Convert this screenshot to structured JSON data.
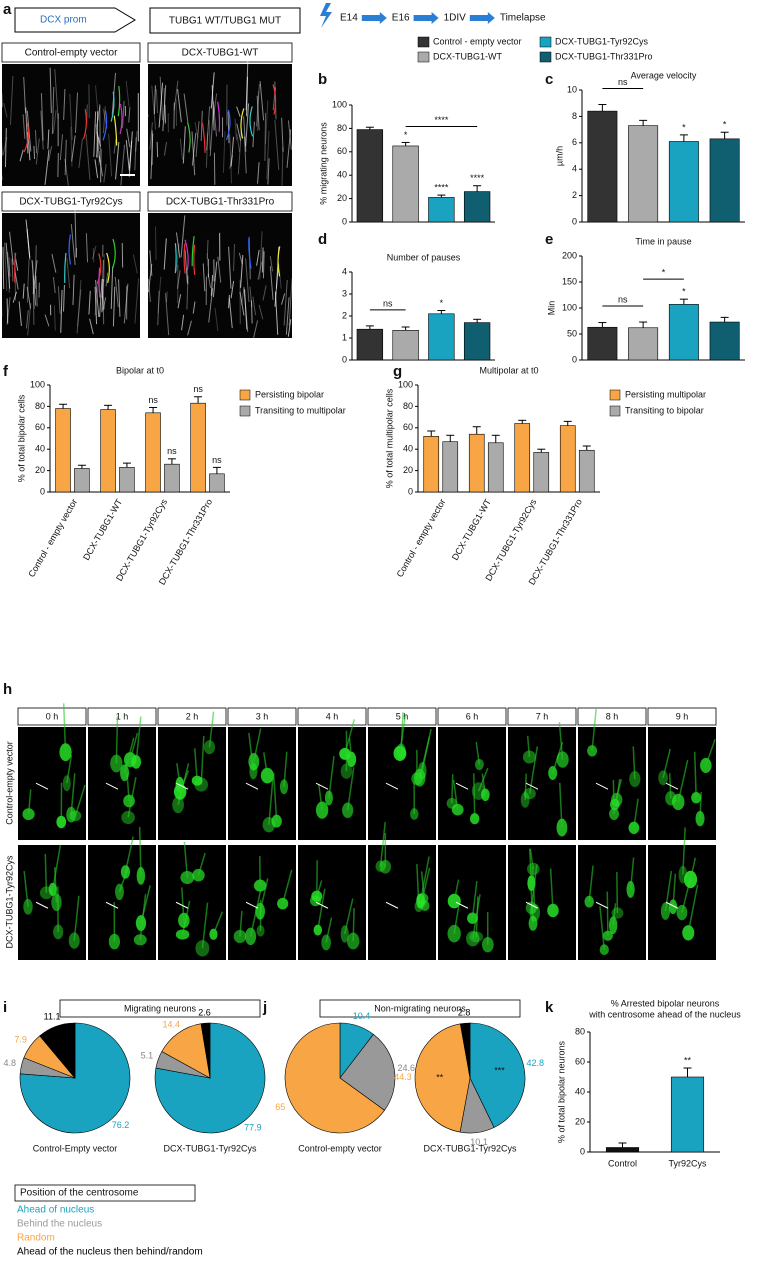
{
  "panel_labels": [
    "a",
    "b",
    "c",
    "d",
    "e",
    "f",
    "g",
    "h",
    "i",
    "j",
    "k"
  ],
  "schematic": {
    "promoter": "DCX prom",
    "construct": "TUBG1 WT/TUBG1 MUT"
  },
  "timeline": [
    "E14",
    "E16",
    "1DIV",
    "Timelapse"
  ],
  "groups": {
    "names": [
      "Control - empty vector",
      "DCX-TUBG1-WT",
      "DCX-TUBG1-Tyr92Cys",
      "DCX-TUBG1-Thr331Pro"
    ],
    "colors": [
      "#333333",
      "#aaaaaa",
      "#19a3c0",
      "#0f5f70"
    ]
  },
  "images_a": [
    "Control-empty vector",
    "DCX-TUBG1-WT",
    "DCX-TUBG1-Tyr92Cys",
    "DCX-TUBG1-Thr331Pro"
  ],
  "timelapse": {
    "times": [
      "0 h",
      "1 h",
      "2 h",
      "3 h",
      "4 h",
      "5 h",
      "6 h",
      "7 h",
      "8 h",
      "9 h"
    ],
    "rows": [
      "Control-empty vector",
      "DCX-TUBG1-Tyr92Cys"
    ]
  },
  "centrosome_legend": {
    "title": "Position of the centrosome",
    "categories": [
      "Ahead of nucleus",
      "Behind the nucleus",
      "Random",
      "Ahead of the nucleus then behind/random"
    ],
    "colors": [
      "#19a3c0",
      "#999999",
      "#f7a545",
      "#000000"
    ]
  },
  "chart_data": [
    {
      "type": "bar",
      "ylabel": "% migrating neurons",
      "values": [
        79,
        65,
        21,
        26
      ],
      "errors": [
        2,
        3,
        2,
        5
      ],
      "sig": [
        null,
        "*",
        "****",
        "****"
      ],
      "brackets": [
        {
          "text": "****",
          "from": 1,
          "to": 3
        }
      ],
      "ylim": [
        0,
        100
      ],
      "yticks": [
        0,
        20,
        40,
        60,
        80,
        100
      ]
    },
    {
      "type": "bar",
      "title": "Average velocity",
      "ylabel": "µm/h",
      "values": [
        8.4,
        7.3,
        6.1,
        6.3
      ],
      "errors": [
        0.5,
        0.4,
        0.5,
        0.5
      ],
      "sig": [
        null,
        null,
        "*",
        "*"
      ],
      "brackets": [
        {
          "text": "ns",
          "from": 0,
          "to": 1
        }
      ],
      "ylim": [
        0,
        10
      ],
      "yticks": [
        0,
        2,
        4,
        6,
        8,
        10
      ]
    },
    {
      "type": "bar",
      "title": "Number of pauses",
      "values": [
        1.4,
        1.35,
        2.1,
        1.7
      ],
      "errors": [
        0.15,
        0.15,
        0.15,
        0.15
      ],
      "sig": [
        null,
        null,
        "*",
        null
      ],
      "brackets": [
        {
          "text": "ns",
          "from": 0,
          "to": 1
        }
      ],
      "ylim": [
        0,
        4
      ],
      "yticks": [
        0,
        1,
        2,
        3,
        4
      ]
    },
    {
      "type": "bar",
      "title": "Time in pause",
      "ylabel": "Min",
      "values": [
        63,
        62,
        107,
        73
      ],
      "errors": [
        9,
        11,
        10,
        9
      ],
      "sig": [
        null,
        null,
        "*",
        null
      ],
      "brackets": [
        {
          "text": "ns",
          "from": 0,
          "to": 1
        },
        {
          "text": "*",
          "from": 1,
          "to": 2
        }
      ],
      "ylim": [
        0,
        200
      ],
      "yticks": [
        0,
        50,
        100,
        150,
        200
      ]
    },
    {
      "type": "bar",
      "title": "Bipolar at t0",
      "ylabel": "% of total bipolar cells",
      "categories": [
        "Control - empty vector",
        "DCX-TUBG1-WT",
        "DCX-TUBG1-Tyr92Cys",
        "DCX-TUBG1-Thr331Pro"
      ],
      "series": [
        {
          "name": "Persisting bipolar",
          "color": "#f7a545",
          "values": [
            78,
            77,
            74,
            83
          ],
          "errors": [
            4,
            4,
            5,
            6
          ],
          "sig": [
            null,
            null,
            "ns",
            "ns"
          ]
        },
        {
          "name": "Transiting to multipolar",
          "color": "#aaaaaa",
          "values": [
            22,
            23,
            26,
            17
          ],
          "errors": [
            3,
            4,
            5,
            6
          ],
          "sig": [
            null,
            null,
            "ns",
            "ns"
          ]
        }
      ],
      "ylim": [
        0,
        100
      ],
      "yticks": [
        0,
        20,
        40,
        60,
        80,
        100
      ]
    },
    {
      "type": "bar",
      "title": "Multipolar at t0",
      "ylabel": "% of total multipolar cells",
      "categories": [
        "Control - empty vector",
        "DCX-TUBG1-WT",
        "DCX-TUBG1-Tyr92Cys",
        "DCX-TUBG1-Thr331Pro"
      ],
      "series": [
        {
          "name": "Persisting multipolar",
          "color": "#f7a545",
          "values": [
            52,
            54,
            64,
            62
          ],
          "errors": [
            5,
            7,
            3,
            4
          ]
        },
        {
          "name": "Transiting to bipolar",
          "color": "#aaaaaa",
          "values": [
            47,
            46,
            37,
            39
          ],
          "errors": [
            6,
            7,
            3,
            4
          ]
        }
      ],
      "ylim": [
        0,
        100
      ],
      "yticks": [
        0,
        20,
        40,
        60,
        80,
        100
      ]
    },
    {
      "type": "pie",
      "title": "Migrating neurons",
      "name": "Control-Empty vector",
      "values": [
        76.2,
        4.8,
        7.9,
        11.1
      ]
    },
    {
      "type": "pie",
      "name": "DCX-TUBG1-Tyr92Cys",
      "values": [
        77.9,
        5.1,
        14.4,
        2.6
      ]
    },
    {
      "type": "pie",
      "title": "Non-migrating neurons",
      "name": "Control-empty vector",
      "values": [
        10.4,
        24.6,
        65,
        null
      ]
    },
    {
      "type": "pie",
      "name": "DCX-TUBG1-Tyr92Cys",
      "values": [
        42.8,
        10.1,
        44.3,
        2.8
      ],
      "slice_marks": [
        "***",
        null,
        "**",
        null
      ]
    },
    {
      "type": "bar",
      "title_lines": [
        "% Arrested bipolar neurons",
        "with centrosome ahead of the nucleus"
      ],
      "ylabel": "% of total bipolar neurons",
      "categories": [
        "Control",
        "Tyr92Cys"
      ],
      "values": [
        3,
        50
      ],
      "errors": [
        3,
        6
      ],
      "colors": [
        "#111111",
        "#19a3c0"
      ],
      "sig": [
        null,
        "**"
      ],
      "ylim": [
        0,
        80
      ],
      "yticks": [
        0,
        20,
        40,
        60,
        80
      ]
    }
  ]
}
